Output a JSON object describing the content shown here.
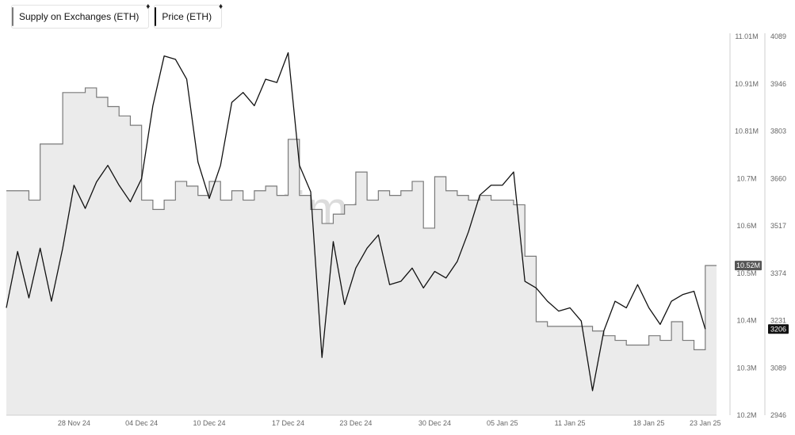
{
  "legend": {
    "supply_label": "Supply on Exchanges (ETH)",
    "price_label": "Price (ETH)",
    "supply_color": "#7a7a7a",
    "price_color": "#111111",
    "currency_icon": "ethereum-icon"
  },
  "watermark": "santiment",
  "chart_data": {
    "type": "line",
    "grid": false,
    "legend_position": "top-left",
    "x_ticks": [
      "28 Nov 24",
      "04 Dec 24",
      "10 Dec 24",
      "17 Dec 24",
      "23 Dec 24",
      "30 Dec 24",
      "05 Jan 25",
      "11 Jan 25",
      "18 Jan 25",
      "23 Jan 25"
    ],
    "x_tick_dates": [
      "2024-11-28",
      "2024-12-04",
      "2024-12-10",
      "2024-12-17",
      "2024-12-23",
      "2024-12-30",
      "2025-01-05",
      "2025-01-11",
      "2025-01-18",
      "2025-01-23"
    ],
    "x_range": [
      "2024-11-22",
      "2025-01-24"
    ],
    "y_left": {
      "series": "Supply on Exchanges (ETH)",
      "ticks": [
        "10.2M",
        "10.3M",
        "10.4M",
        "10.5M",
        "10.6M",
        "10.7M",
        "10.81M",
        "10.91M",
        "11.01M"
      ],
      "range": [
        10.2,
        11.01
      ],
      "unit": "M",
      "current_label": "10.52M"
    },
    "y_right": {
      "series": "Price (ETH)",
      "ticks": [
        "2946",
        "3089",
        "3231",
        "3374",
        "3517",
        "3660",
        "3803",
        "3946",
        "4089"
      ],
      "range": [
        2946,
        4089
      ],
      "current_label": "3206"
    },
    "series": [
      {
        "name": "Supply on Exchanges (ETH)",
        "axis": "left",
        "style": "step-area",
        "points": [
          [
            "2024-11-22",
            10.68
          ],
          [
            "2024-11-24",
            10.66
          ],
          [
            "2024-11-25",
            10.78
          ],
          [
            "2024-11-27",
            10.89
          ],
          [
            "2024-11-29",
            10.9
          ],
          [
            "2024-11-30",
            10.88
          ],
          [
            "2024-12-01",
            10.86
          ],
          [
            "2024-12-02",
            10.84
          ],
          [
            "2024-12-03",
            10.82
          ],
          [
            "2024-12-04",
            10.66
          ],
          [
            "2024-12-05",
            10.64
          ],
          [
            "2024-12-06",
            10.66
          ],
          [
            "2024-12-07",
            10.7
          ],
          [
            "2024-12-08",
            10.69
          ],
          [
            "2024-12-09",
            10.67
          ],
          [
            "2024-12-10",
            10.7
          ],
          [
            "2024-12-11",
            10.66
          ],
          [
            "2024-12-12",
            10.68
          ],
          [
            "2024-12-13",
            10.66
          ],
          [
            "2024-12-14",
            10.68
          ],
          [
            "2024-12-15",
            10.69
          ],
          [
            "2024-12-16",
            10.67
          ],
          [
            "2024-12-17",
            10.79
          ],
          [
            "2024-12-18",
            10.67
          ],
          [
            "2024-12-19",
            10.64
          ],
          [
            "2024-12-20",
            10.61
          ],
          [
            "2024-12-21",
            10.63
          ],
          [
            "2024-12-22",
            10.65
          ],
          [
            "2024-12-23",
            10.72
          ],
          [
            "2024-12-24",
            10.66
          ],
          [
            "2024-12-25",
            10.68
          ],
          [
            "2024-12-26",
            10.67
          ],
          [
            "2024-12-27",
            10.68
          ],
          [
            "2024-12-28",
            10.7
          ],
          [
            "2024-12-29",
            10.6
          ],
          [
            "2024-12-30",
            10.71
          ],
          [
            "2024-12-31",
            10.68
          ],
          [
            "2025-01-01",
            10.67
          ],
          [
            "2025-01-02",
            10.66
          ],
          [
            "2025-01-03",
            10.67
          ],
          [
            "2025-01-04",
            10.66
          ],
          [
            "2025-01-05",
            10.66
          ],
          [
            "2025-01-06",
            10.65
          ],
          [
            "2025-01-07",
            10.54
          ],
          [
            "2025-01-08",
            10.4
          ],
          [
            "2025-01-09",
            10.39
          ],
          [
            "2025-01-10",
            10.39
          ],
          [
            "2025-01-11",
            10.39
          ],
          [
            "2025-01-12",
            10.39
          ],
          [
            "2025-01-13",
            10.38
          ],
          [
            "2025-01-14",
            10.37
          ],
          [
            "2025-01-15",
            10.36
          ],
          [
            "2025-01-16",
            10.35
          ],
          [
            "2025-01-17",
            10.35
          ],
          [
            "2025-01-18",
            10.37
          ],
          [
            "2025-01-19",
            10.36
          ],
          [
            "2025-01-20",
            10.4
          ],
          [
            "2025-01-21",
            10.36
          ],
          [
            "2025-01-22",
            10.34
          ],
          [
            "2025-01-23",
            10.52
          ],
          [
            "2025-01-24",
            10.52
          ]
        ]
      },
      {
        "name": "Price (ETH)",
        "axis": "right",
        "style": "line",
        "points": [
          [
            "2024-11-22",
            3270
          ],
          [
            "2024-11-23",
            3440
          ],
          [
            "2024-11-24",
            3300
          ],
          [
            "2024-11-25",
            3450
          ],
          [
            "2024-11-26",
            3290
          ],
          [
            "2024-11-27",
            3450
          ],
          [
            "2024-11-28",
            3640
          ],
          [
            "2024-11-29",
            3570
          ],
          [
            "2024-11-30",
            3650
          ],
          [
            "2024-12-01",
            3700
          ],
          [
            "2024-12-02",
            3640
          ],
          [
            "2024-12-03",
            3590
          ],
          [
            "2024-12-04",
            3660
          ],
          [
            "2024-12-05",
            3880
          ],
          [
            "2024-12-06",
            4030
          ],
          [
            "2024-12-07",
            4020
          ],
          [
            "2024-12-08",
            3960
          ],
          [
            "2024-12-09",
            3710
          ],
          [
            "2024-12-10",
            3600
          ],
          [
            "2024-12-11",
            3700
          ],
          [
            "2024-12-12",
            3890
          ],
          [
            "2024-12-13",
            3920
          ],
          [
            "2024-12-14",
            3880
          ],
          [
            "2024-12-15",
            3960
          ],
          [
            "2024-12-16",
            3950
          ],
          [
            "2024-12-17",
            4040
          ],
          [
            "2024-12-18",
            3700
          ],
          [
            "2024-12-19",
            3620
          ],
          [
            "2024-12-20",
            3120
          ],
          [
            "2024-12-21",
            3470
          ],
          [
            "2024-12-22",
            3280
          ],
          [
            "2024-12-23",
            3390
          ],
          [
            "2024-12-24",
            3450
          ],
          [
            "2024-12-25",
            3490
          ],
          [
            "2024-12-26",
            3340
          ],
          [
            "2024-12-27",
            3350
          ],
          [
            "2024-12-28",
            3390
          ],
          [
            "2024-12-29",
            3330
          ],
          [
            "2024-12-30",
            3380
          ],
          [
            "2024-12-31",
            3360
          ],
          [
            "2025-01-01",
            3410
          ],
          [
            "2025-01-02",
            3500
          ],
          [
            "2025-01-03",
            3610
          ],
          [
            "2025-01-04",
            3640
          ],
          [
            "2025-01-05",
            3640
          ],
          [
            "2025-01-06",
            3680
          ],
          [
            "2025-01-07",
            3350
          ],
          [
            "2025-01-08",
            3330
          ],
          [
            "2025-01-09",
            3290
          ],
          [
            "2025-01-10",
            3260
          ],
          [
            "2025-01-11",
            3270
          ],
          [
            "2025-01-12",
            3230
          ],
          [
            "2025-01-13",
            3020
          ],
          [
            "2025-01-14",
            3200
          ],
          [
            "2025-01-15",
            3290
          ],
          [
            "2025-01-16",
            3270
          ],
          [
            "2025-01-17",
            3340
          ],
          [
            "2025-01-18",
            3270
          ],
          [
            "2025-01-19",
            3220
          ],
          [
            "2025-01-20",
            3290
          ],
          [
            "2025-01-21",
            3310
          ],
          [
            "2025-01-22",
            3320
          ],
          [
            "2025-01-23",
            3206
          ]
        ]
      }
    ]
  }
}
